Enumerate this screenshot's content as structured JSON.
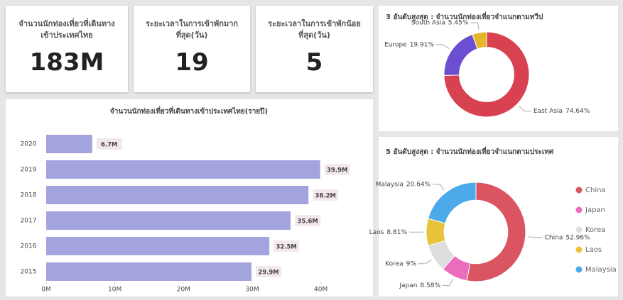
{
  "cards": [
    {
      "title": "จำนวนนักท่องเที่ยวที่เดินทางเข้าประเทศไทย",
      "value": "183M"
    },
    {
      "title": "ระยะเวลาในการเข้าพักมากที่สุด(วัน)",
      "value": "19"
    },
    {
      "title": "ระยะเวลาในการเข้าพักน้อยที่สุด(วัน)",
      "value": "5"
    }
  ],
  "chart_data": [
    {
      "type": "bar",
      "orientation": "horizontal",
      "title": "จำนวนนักท่องเที่ยวที่เดินทางเข้าประเทศไทย(รายปี)",
      "categories": [
        "2020",
        "2019",
        "2018",
        "2017",
        "2016",
        "2015"
      ],
      "values": [
        6.7,
        39.9,
        38.2,
        35.6,
        32.5,
        29.9
      ],
      "value_labels": [
        "6.7M",
        "39.9M",
        "38.2M",
        "35.6M",
        "32.5M",
        "29.9M"
      ],
      "color": "#a3a4dd",
      "xlim": [
        0,
        45
      ],
      "xticks": [
        {
          "value": 0,
          "label": "0M"
        },
        {
          "value": 10,
          "label": "10M"
        },
        {
          "value": 20,
          "label": "20M"
        },
        {
          "value": 30,
          "label": "30M"
        },
        {
          "value": 40,
          "label": "40M"
        }
      ]
    },
    {
      "type": "pie",
      "donut": true,
      "title": "3 อันดับสูงสุด : จำนวนนักท่องเที่ยวจำแนกตามทวีป",
      "categories": [
        "East Asia",
        "Europe",
        "South Asia"
      ],
      "values": [
        74.64,
        19.91,
        5.45
      ],
      "value_labels": [
        "74.64%",
        "19.91%",
        "5.45%"
      ],
      "colors": [
        "#d8414f",
        "#6c4fd0",
        "#e4b62c"
      ]
    },
    {
      "type": "pie",
      "donut": true,
      "legend": "right",
      "title": "5 อันดับสูงสุด : จำนวนนักท่องเที่ยวจำแนกตามประเทศ",
      "categories": [
        "China",
        "Japan",
        "Korea",
        "Laos",
        "Malaysia"
      ],
      "values": [
        52.96,
        8.58,
        9,
        8.81,
        20.64
      ],
      "value_labels": [
        "52.96%",
        "8.58%",
        "9%",
        "8.81%",
        "20.64%"
      ],
      "colors": [
        "#da5561",
        "#ea6dbd",
        "#dedede",
        "#e8c23b",
        "#4ca9ea"
      ]
    }
  ]
}
